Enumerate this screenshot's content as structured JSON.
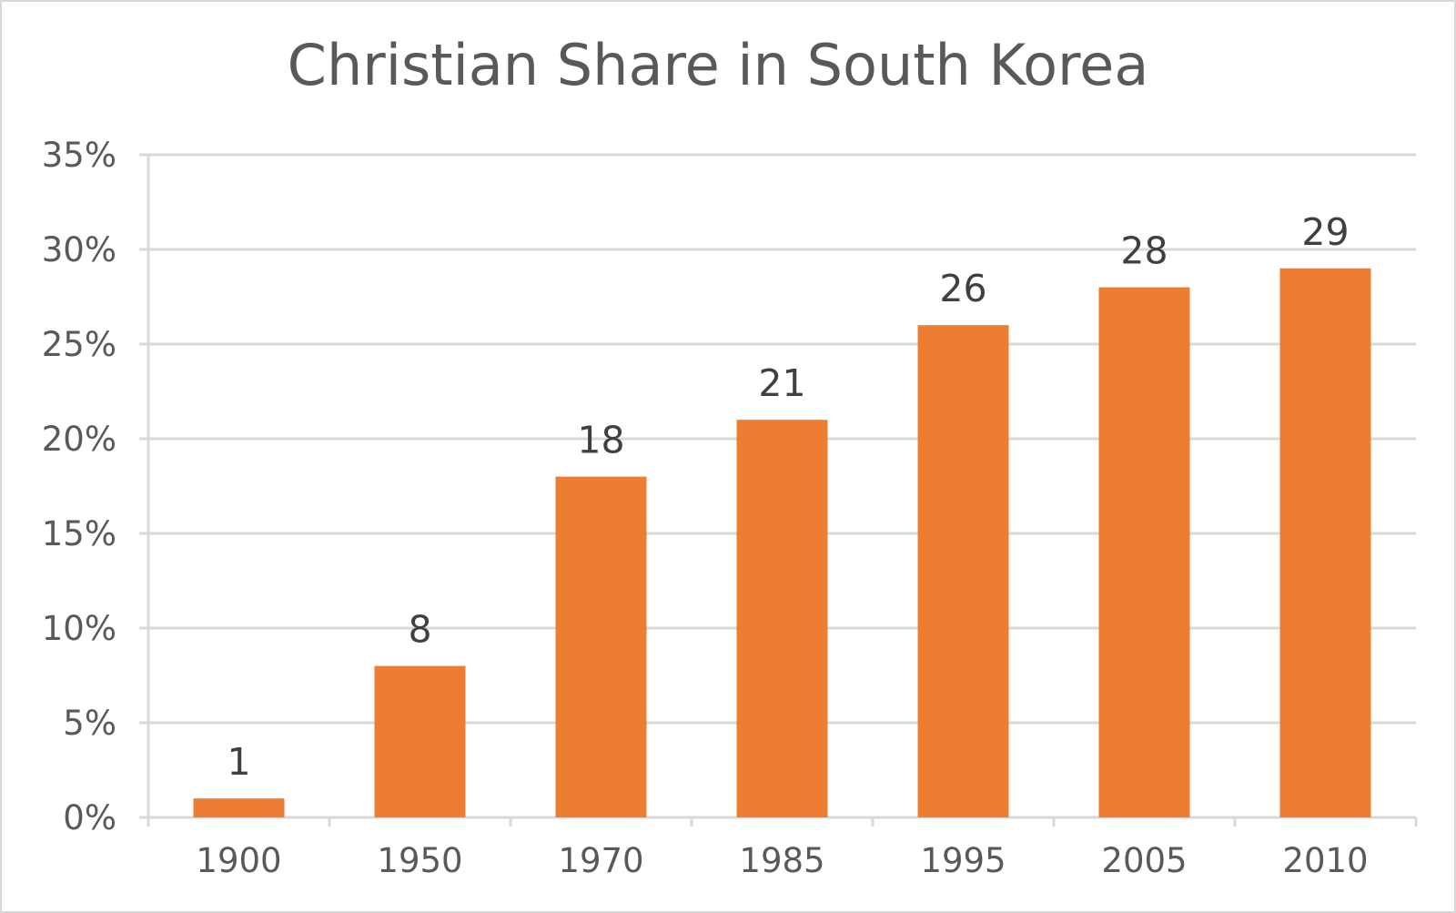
{
  "chart_data": {
    "type": "bar",
    "title": "Christian Share in South Korea",
    "xlabel": "",
    "ylabel": "",
    "categories": [
      "1900",
      "1950",
      "1970",
      "1985",
      "1995",
      "2005",
      "2010"
    ],
    "values": [
      1,
      8,
      18,
      21,
      26,
      28,
      29
    ],
    "data_labels": [
      "1",
      "8",
      "18",
      "21",
      "26",
      "28",
      "29"
    ],
    "ylim": [
      0,
      35
    ],
    "yticks": [
      0,
      5,
      10,
      15,
      20,
      25,
      30,
      35
    ],
    "ytick_labels": [
      "0%",
      "5%",
      "10%",
      "15%",
      "20%",
      "25%",
      "30%",
      "35%"
    ],
    "grid": true,
    "legend": "none",
    "bar_color": "#ED7D31"
  }
}
